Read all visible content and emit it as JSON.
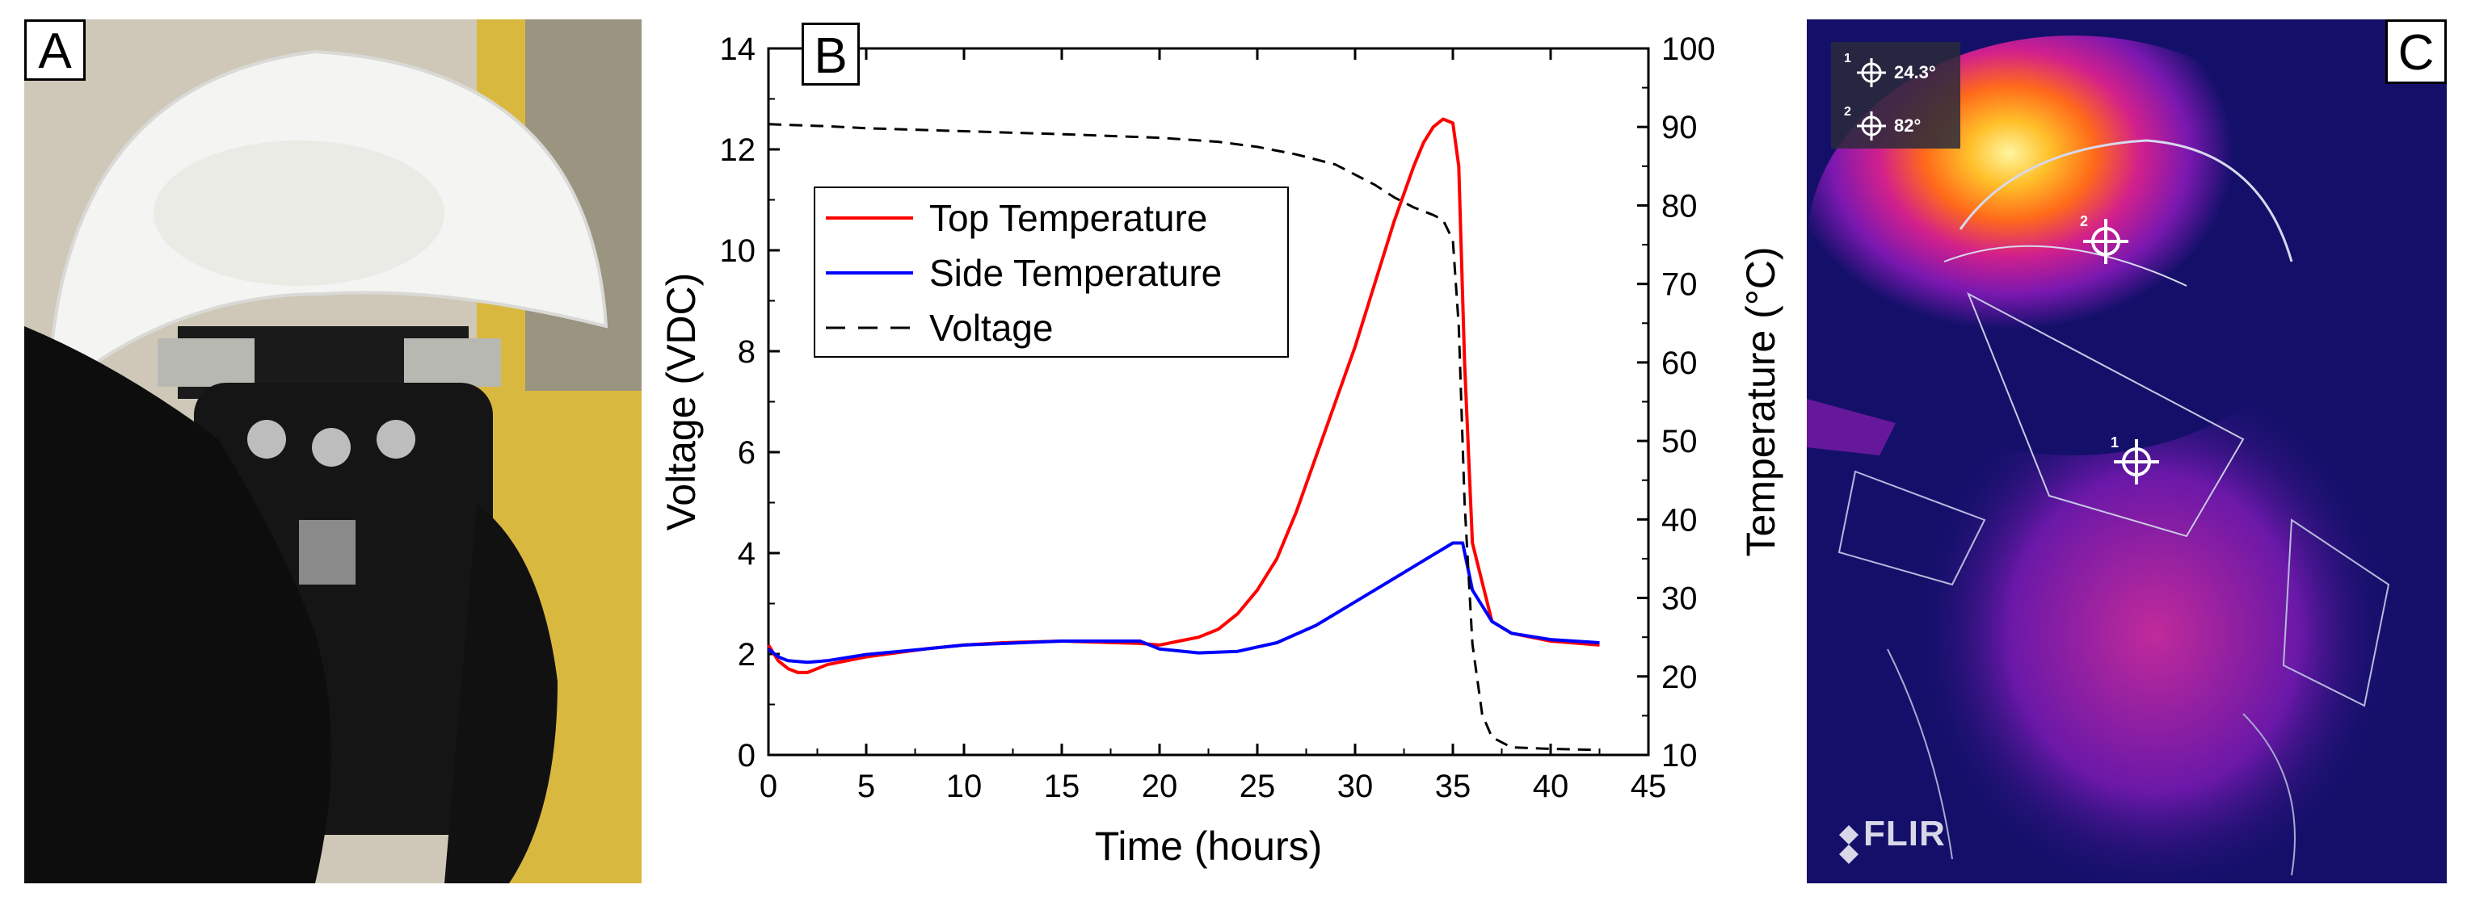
{
  "panels": {
    "a": {
      "label": "A"
    },
    "b": {
      "label": "B"
    },
    "c": {
      "label": "C"
    }
  },
  "thermal": {
    "spot1_index": "1",
    "spot1_value": "24.3°",
    "spot2_index": "2",
    "spot2_value": "82°",
    "logo": "FLIR"
  },
  "colors": {
    "top_temperature": "#ff0000",
    "side_temperature": "#0000ff",
    "voltage": "#000000"
  },
  "chart_data": {
    "type": "line",
    "xlabel": "Time (hours)",
    "ylabel_left": "Voltage (VDC)",
    "ylabel_right": "Temperature (°C)",
    "xlim": [
      0,
      45
    ],
    "ylim_left": [
      0,
      14
    ],
    "ylim_right": [
      10,
      100
    ],
    "x_ticks": [
      0,
      5,
      10,
      15,
      20,
      25,
      30,
      35,
      40,
      45
    ],
    "y_left_ticks": [
      0,
      2,
      4,
      6,
      8,
      10,
      12,
      14
    ],
    "y_right_ticks": [
      10,
      20,
      30,
      40,
      50,
      60,
      70,
      80,
      90,
      100
    ],
    "legend": [
      "Top Temperature",
      "Side Temperature",
      "Voltage"
    ],
    "series": [
      {
        "name": "Top Temperature",
        "axis": "right",
        "style": "solid",
        "x": [
          0,
          0.5,
          1,
          1.5,
          2,
          3,
          5,
          8,
          10,
          12,
          15,
          19,
          20,
          21,
          22,
          23,
          24,
          25,
          26,
          27,
          28,
          29,
          30,
          31,
          32,
          33,
          33.5,
          34,
          34.5,
          35,
          35.3,
          35.6,
          36,
          37,
          38,
          40,
          42.5
        ],
        "values": [
          24,
          22,
          21,
          20.5,
          20.5,
          21.5,
          22.5,
          23.5,
          24,
          24.3,
          24.5,
          24.2,
          24,
          24.5,
          25,
          26,
          28,
          31,
          35,
          41,
          48,
          55,
          62,
          70,
          78,
          85,
          88,
          90,
          91,
          90.5,
          85,
          60,
          37,
          27,
          25.5,
          24.5,
          24
        ]
      },
      {
        "name": "Side Temperature",
        "axis": "right",
        "style": "solid",
        "x": [
          0,
          0.5,
          1,
          2,
          3,
          5,
          8,
          10,
          15,
          19,
          20,
          22,
          24,
          26,
          28,
          30,
          32,
          34,
          35,
          35.5,
          36,
          37,
          38,
          40,
          42.5
        ],
        "values": [
          23.5,
          22.5,
          22,
          21.8,
          22,
          22.8,
          23.5,
          24,
          24.5,
          24.5,
          23.5,
          23,
          23.2,
          24.3,
          26.5,
          29.5,
          32.5,
          35.5,
          37,
          37,
          31,
          27,
          25.5,
          24.7,
          24.3
        ]
      },
      {
        "name": "Voltage",
        "axis": "left",
        "style": "dashed",
        "x": [
          0,
          3,
          5,
          10,
          15,
          20,
          23,
          25,
          27,
          29,
          30,
          31,
          32,
          33,
          34,
          34.5,
          35,
          35.3,
          35.6,
          36,
          36.5,
          37,
          38,
          40,
          42.5
        ],
        "values": [
          12.5,
          12.46,
          12.42,
          12.36,
          12.3,
          12.23,
          12.15,
          12.05,
          11.9,
          11.7,
          11.5,
          11.3,
          11.05,
          10.85,
          10.7,
          10.6,
          10.2,
          8.5,
          5.0,
          2.2,
          0.8,
          0.35,
          0.15,
          0.12,
          0.1
        ]
      }
    ]
  }
}
